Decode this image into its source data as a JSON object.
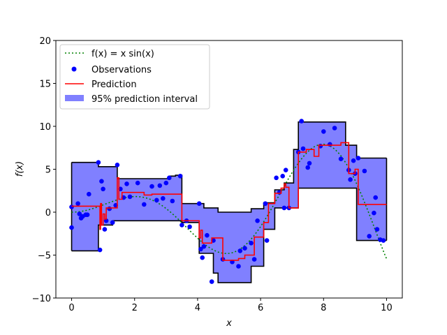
{
  "chart_data": {
    "type": "line",
    "xlabel": "x",
    "ylabel": "f(x)",
    "xlim": [
      -0.5,
      10.5
    ],
    "ylim": [
      -10,
      20
    ],
    "xticks": [
      0,
      2,
      4,
      6,
      8,
      10
    ],
    "yticks": [
      -10,
      -5,
      0,
      5,
      10,
      15,
      20
    ],
    "grid": false,
    "legend_position": "top-left",
    "legend": [
      {
        "label": "f(x) = x sin(x)",
        "style": "dotted-line",
        "color": "#008000"
      },
      {
        "label": "Observations",
        "style": "marker",
        "color": "#0000ff"
      },
      {
        "label": "Prediction",
        "style": "line",
        "color": "#ff0000"
      },
      {
        "label": "95% prediction interval",
        "style": "patch",
        "color": "#8080ff"
      }
    ],
    "true_function": {
      "name": "f(x) = x sin(x)",
      "color": "#008000",
      "x_range": [
        0,
        10
      ]
    },
    "observations": {
      "color": "#0000ff",
      "x": [
        0.0,
        0.0,
        0.2,
        0.25,
        0.3,
        0.35,
        0.45,
        0.5,
        0.55,
        0.85,
        0.9,
        0.95,
        1.0,
        1.05,
        1.1,
        1.2,
        1.3,
        1.4,
        1.45,
        1.55,
        1.65,
        1.75,
        1.85,
        2.1,
        2.3,
        2.55,
        2.7,
        2.8,
        2.9,
        3.0,
        3.1,
        3.2,
        3.45,
        3.5,
        3.65,
        3.75,
        4.05,
        4.1,
        4.15,
        4.2,
        4.3,
        4.45,
        4.5,
        4.8,
        5.1,
        5.3,
        5.35,
        5.5,
        5.7,
        5.8,
        5.9,
        6.15,
        6.2,
        6.5,
        6.6,
        6.7,
        6.75,
        6.8,
        6.9,
        7.2,
        7.3,
        7.35,
        7.5,
        7.55,
        7.9,
        8.0,
        8.2,
        8.35,
        8.55,
        8.8,
        8.85,
        8.95,
        9.0,
        9.1,
        9.3,
        9.45,
        9.6,
        9.65,
        9.7,
        9.8,
        9.9
      ],
      "y": [
        0.6,
        -1.8,
        1.0,
        -0.2,
        -0.7,
        -0.5,
        -0.3,
        -0.3,
        2.1,
        5.8,
        -4.4,
        3.6,
        2.7,
        -2.0,
        -1.0,
        0.4,
        -1.2,
        0.8,
        5.5,
        2.7,
        1.7,
        3.3,
        1.8,
        3.4,
        0.9,
        3.0,
        1.4,
        3.1,
        1.6,
        3.4,
        4.0,
        1.3,
        4.2,
        -1.5,
        -1.0,
        -1.7,
        1.0,
        -4.3,
        -5.3,
        -4.0,
        -2.7,
        -8.1,
        -3.3,
        -5.5,
        -5.8,
        -6.3,
        -4.5,
        -4.2,
        -3.6,
        -5.5,
        -1.0,
        1.0,
        -3.3,
        4.0,
        2.3,
        4.2,
        0.5,
        4.9,
        0.5,
        7.0,
        10.6,
        7.4,
        5.2,
        5.7,
        7.7,
        9.4,
        7.9,
        9.8,
        6.2,
        4.9,
        3.8,
        6.0,
        4.5,
        6.3,
        4.8,
        -2.8,
        -0.1,
        1.7,
        -2.0,
        -3.2,
        -3.3
      ]
    },
    "prediction": {
      "name": "Prediction",
      "color": "#ff0000",
      "x": [
        0.0,
        0.9,
        0.92,
        0.95,
        1.0,
        1.05,
        1.1,
        1.45,
        1.5,
        1.6,
        2.3,
        2.55,
        3.05,
        3.5,
        4.05,
        4.1,
        4.15,
        4.45,
        4.8,
        5.3,
        5.5,
        5.8,
        6.1,
        6.25,
        6.45,
        6.65,
        6.75,
        6.8,
        6.9,
        7.2,
        7.45,
        7.7,
        7.85,
        8.55,
        8.8,
        9.0,
        9.1,
        10.0
      ],
      "y": [
        0.7,
        -2.0,
        1.0,
        -1.5,
        -0.2,
        -0.8,
        0.5,
        4.0,
        1.5,
        2.3,
        2.0,
        2.1,
        2.1,
        -1.0,
        -3.0,
        -2.1,
        -3.6,
        -3.0,
        -5.6,
        -5.4,
        -5.0,
        -2.9,
        -1.2,
        1.0,
        2.2,
        2.8,
        3.3,
        2.9,
        0.5,
        7.0,
        7.3,
        6.5,
        7.8,
        8.1,
        4.5,
        5.0,
        0.9,
        0.9
      ]
    },
    "interval": {
      "name": "95% prediction interval",
      "color": "#8080ff",
      "x": [
        0.0,
        0.85,
        1.3,
        1.45,
        2.0,
        2.5,
        3.1,
        3.3,
        3.5,
        4.05,
        4.2,
        4.5,
        4.65,
        5.7,
        6.1,
        6.45,
        6.75,
        7.05,
        7.2,
        7.95,
        8.7,
        9.05,
        10.0
      ],
      "upper": [
        5.8,
        5.3,
        5.3,
        3.9,
        3.9,
        3.9,
        4.2,
        4.3,
        1.0,
        1.0,
        0.5,
        0.5,
        0.0,
        0.4,
        1.1,
        2.6,
        3.4,
        7.3,
        10.5,
        10.5,
        7.8,
        6.3,
        6.3
      ],
      "lower": [
        -4.5,
        -1.5,
        -1.0,
        -1.0,
        -1.0,
        -1.0,
        -1.0,
        -1.0,
        -1.2,
        -4.8,
        -4.8,
        -7.1,
        -8.2,
        -6.3,
        -2.0,
        0.5,
        0.5,
        0.5,
        2.8,
        2.8,
        2.8,
        -3.3,
        -3.3
      ]
    }
  }
}
